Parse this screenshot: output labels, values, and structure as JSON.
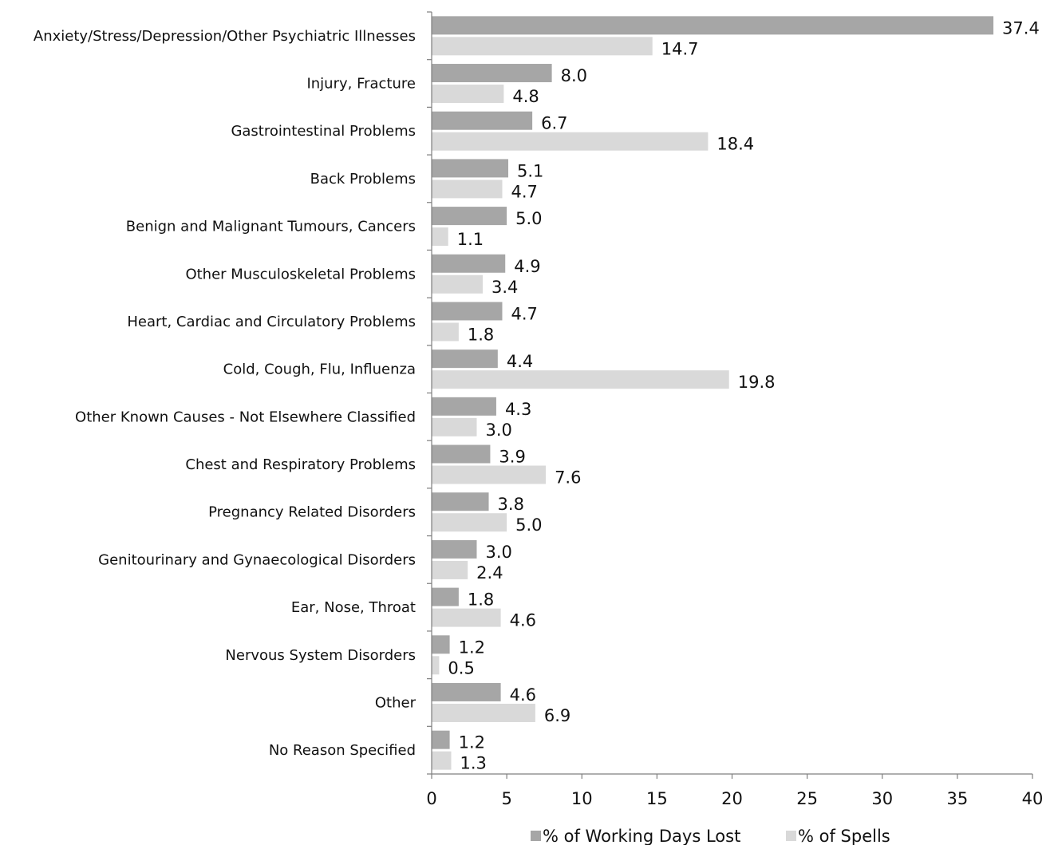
{
  "chart_data": {
    "type": "bar",
    "orientation": "horizontal",
    "categories": [
      "Anxiety/Stress/Depression/Other Psychiatric Illnesses",
      "Injury, Fracture",
      "Gastrointestinal Problems",
      "Back Problems",
      "Benign and Malignant Tumours, Cancers",
      "Other Musculoskeletal Problems",
      "Heart, Cardiac and Circulatory Problems",
      "Cold, Cough, Flu, Influenza",
      "Other Known Causes - Not Elsewhere Classified",
      "Chest and Respiratory Problems",
      "Pregnancy Related Disorders",
      "Genitourinary and Gynaecological Disorders",
      "Ear, Nose, Throat",
      "Nervous System Disorders",
      "Other",
      "No Reason Specified"
    ],
    "series": [
      {
        "name": "% of Working Days Lost",
        "color": "#a6a6a6",
        "values": [
          37.4,
          8.0,
          6.7,
          5.1,
          5.0,
          4.9,
          4.7,
          4.4,
          4.3,
          3.9,
          3.8,
          3.0,
          1.8,
          1.2,
          4.6,
          1.2
        ],
        "labels": [
          "37.4",
          "8.0",
          "6.7",
          "5.1",
          "5.0",
          "4.9",
          "4.7",
          "4.4",
          "4.3",
          "3.9",
          "3.8",
          "3.0",
          "1.8",
          "1.2",
          "4.6",
          "1.2"
        ]
      },
      {
        "name": "% of Spells",
        "color": "#d9d9d9",
        "values": [
          14.7,
          4.8,
          18.4,
          4.7,
          1.1,
          3.4,
          1.8,
          19.8,
          3.0,
          7.6,
          5.0,
          2.4,
          4.6,
          0.5,
          6.9,
          1.3
        ],
        "labels": [
          "14.7",
          "4.8",
          "18.4",
          "4.7",
          "1.1",
          "3.4",
          "1.8",
          "19.8",
          "3.0",
          "7.6",
          "5.0",
          "2.4",
          "4.6",
          "0.5",
          "6.9",
          "1.3"
        ]
      }
    ],
    "xlim": [
      0,
      40
    ],
    "xticks": [
      "0",
      "5",
      "10",
      "15",
      "20",
      "25",
      "30",
      "35",
      "40"
    ],
    "title": "",
    "xlabel": "",
    "ylabel": "",
    "grid": false,
    "legend_position": "bottom"
  }
}
